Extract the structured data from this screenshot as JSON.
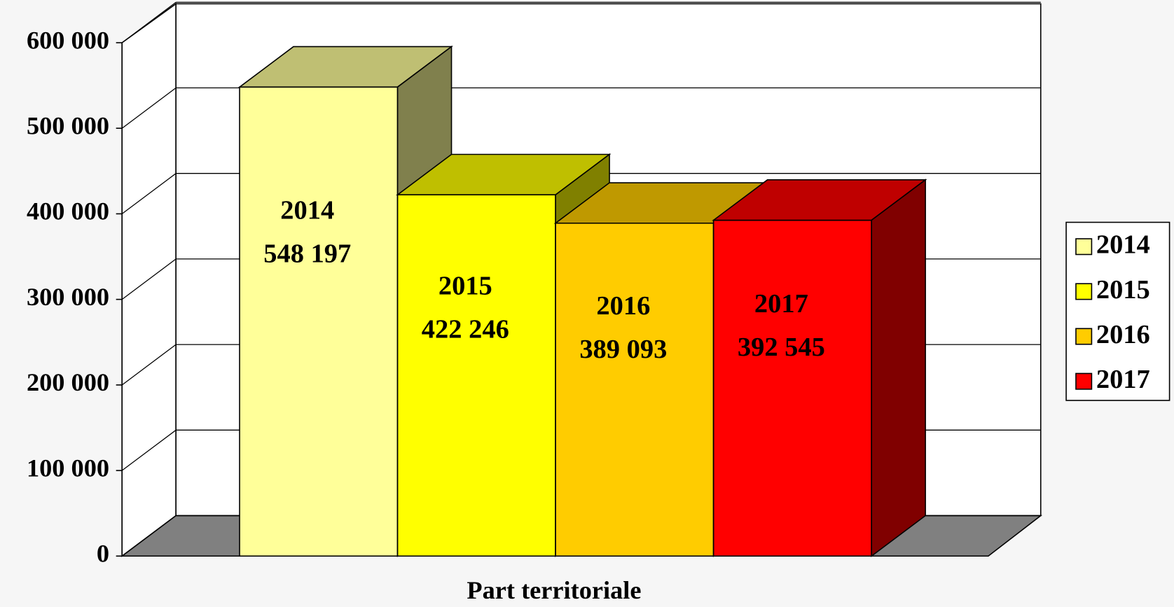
{
  "chart_data": {
    "type": "bar3d",
    "x_label": "Part territoriale",
    "categories": [
      "Part territoriale"
    ],
    "series": [
      {
        "name": "2014",
        "color": "#FFFF99",
        "values": [
          548197
        ],
        "value_labels": [
          "548 197"
        ]
      },
      {
        "name": "2015",
        "color": "#FFFF00",
        "values": [
          422246
        ],
        "value_labels": [
          "422 246"
        ]
      },
      {
        "name": "2016",
        "color": "#FFCC00",
        "values": [
          389093
        ],
        "value_labels": [
          "389 093"
        ]
      },
      {
        "name": "2017",
        "color": "#FF0000",
        "values": [
          392545
        ],
        "value_labels": [
          "392 545"
        ]
      }
    ],
    "ylim": [
      0,
      600000
    ],
    "yticks": [
      0,
      {
        "value": 100000,
        "label": "100 000"
      },
      {
        "value": 200000,
        "label": "200 000"
      },
      {
        "value": 300000,
        "label": "300 000"
      },
      {
        "value": 400000,
        "label": "400 000"
      },
      {
        "value": 500000,
        "label": "500 000"
      },
      {
        "value": 600000,
        "label": "600 000"
      }
    ],
    "grid": true,
    "legend": "right"
  }
}
